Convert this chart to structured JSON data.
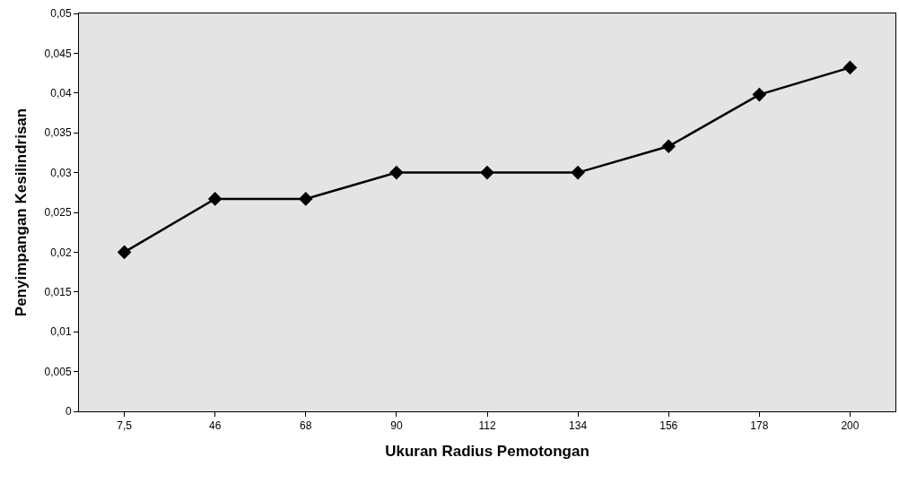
{
  "chart_data": {
    "type": "line",
    "xlabel": "Ukuran Radius Pemotongan",
    "ylabel": "Penyimpangan Kesilindrisan",
    "categories": [
      "7,5",
      "46",
      "68",
      "90",
      "112",
      "134",
      "156",
      "178",
      "200"
    ],
    "series": [
      {
        "color": "#000000",
        "values": [
          0.02,
          0.0267,
          0.0267,
          0.03,
          0.03,
          0.03,
          0.0333,
          0.0398,
          0.0432
        ]
      }
    ],
    "ylim": [
      0,
      0.05
    ],
    "yticks": [
      0,
      {
        "value": 0.005,
        "label": "0,005"
      },
      {
        "value": 0.01,
        "label": "0,01"
      },
      {
        "value": 0.015,
        "label": "0,015"
      },
      {
        "value": 0.02,
        "label": "0,02"
      },
      {
        "value": 0.025,
        "label": "0,025"
      },
      {
        "value": 0.03,
        "label": "0,03"
      },
      {
        "value": 0.035,
        "label": "0,035"
      },
      {
        "value": 0.04,
        "label": "0,04"
      },
      {
        "value": 0.045,
        "label": "0,045"
      },
      {
        "value": 0.05,
        "label": "0,05"
      }
    ],
    "grid": false,
    "legend": false,
    "marker": "diamond",
    "line_style": "solid"
  }
}
